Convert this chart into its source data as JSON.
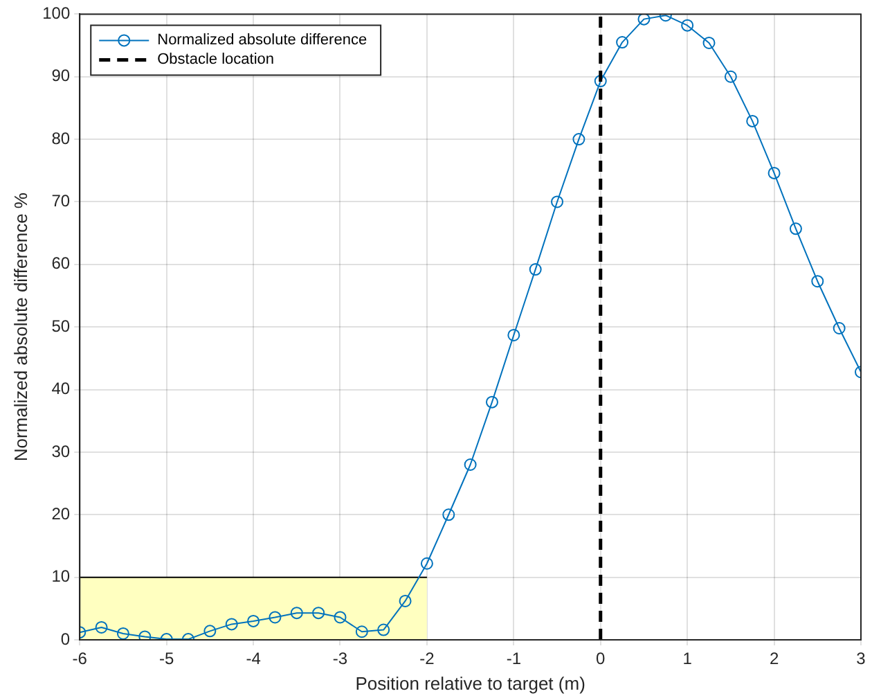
{
  "chart_data": {
    "type": "line",
    "xlabel": "Position relative to target (m)",
    "ylabel": "Normalized absolute difference %",
    "xlim": [
      -6,
      3
    ],
    "xticks": [
      -6,
      -5,
      -4,
      -3,
      -2,
      -1,
      0,
      1,
      2,
      3
    ],
    "ylim": [
      0,
      100
    ],
    "yticks": [
      0,
      10,
      20,
      30,
      40,
      50,
      60,
      70,
      80,
      90,
      100
    ],
    "grid": true,
    "legend": "top left",
    "series": [
      {
        "type": "area",
        "color": "#ffffc0",
        "x": [
          -6,
          -2
        ],
        "values": [
          10,
          10
        ]
      },
      {
        "name": "Normalized absolute difference",
        "color": "#0072bd",
        "marker": "circle",
        "line_style": "solid",
        "x": [
          -6,
          -5.75,
          -5.5,
          -5.25,
          -5,
          -4.75,
          -4.5,
          -4.25,
          -4,
          -3.75,
          -3.5,
          -3.25,
          -3,
          -2.75,
          -2.5,
          -2.25,
          -2,
          -1.75,
          -1.5,
          -1.25,
          -1,
          -0.75,
          -0.5,
          -0.25,
          0,
          0.25,
          0.5,
          0.75,
          1,
          1.25,
          1.5,
          1.75,
          2,
          2.25,
          2.5,
          2.75,
          3
        ],
        "values": [
          1.2,
          2,
          1,
          0.5,
          0.1,
          0.1,
          1.4,
          2.5,
          3,
          3.6,
          4.3,
          4.3,
          3.6,
          1.3,
          1.6,
          6.2,
          12.2,
          20,
          28,
          38,
          48.7,
          59.2,
          70,
          80,
          89.3,
          95.5,
          99.2,
          99.8,
          98.2,
          95.4,
          90,
          82.9,
          74.6,
          65.7,
          57.3,
          49.8,
          42.8
        ]
      }
    ],
    "ref_lines": [
      {
        "axis": "x",
        "value": 0,
        "label": "Obstacle location",
        "color": "#000000",
        "line_style": "dashed"
      }
    ]
  }
}
